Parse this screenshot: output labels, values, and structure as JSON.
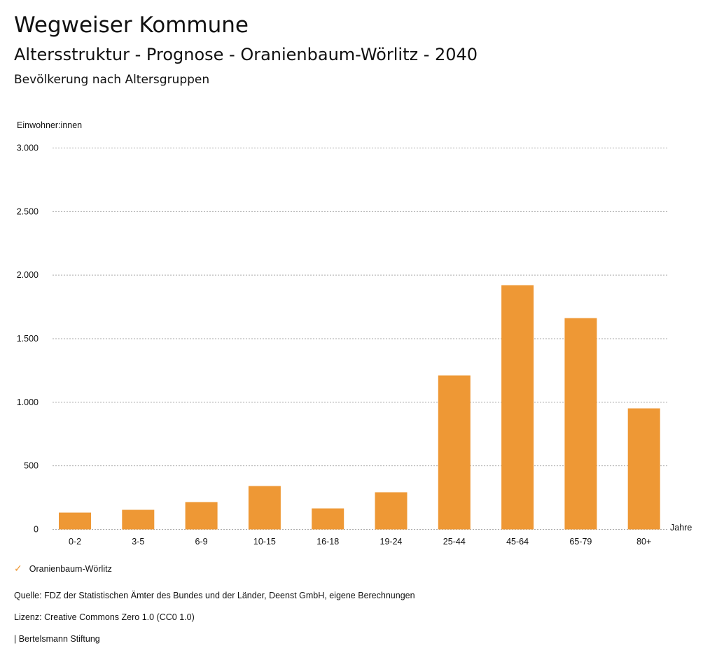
{
  "header": {
    "title": "Wegweiser Kommune",
    "subtitle": "Altersstruktur - Prognose - Oranienbaum-Wörlitz - 2040",
    "section": "Bevölkerung nach Altersgruppen"
  },
  "chart_data": {
    "type": "bar",
    "title": "Bevölkerung nach Altersgruppen",
    "ylabel": "Einwohner:innen",
    "xlabel": "Jahre",
    "categories": [
      "0-2",
      "3-5",
      "6-9",
      "10-15",
      "16-18",
      "19-24",
      "25-44",
      "45-64",
      "65-79",
      "80+"
    ],
    "series": [
      {
        "name": "Oranienbaum-Wörlitz",
        "color": "#ee9835",
        "values": [
          132,
          154,
          215,
          341,
          165,
          292,
          1211,
          1921,
          1662,
          952
        ]
      }
    ],
    "ylim": [
      0,
      3000
    ],
    "yticks": [
      0,
      500,
      1000,
      1500,
      2000,
      2500,
      3000
    ],
    "ytick_labels": [
      "0",
      "500",
      "1.000",
      "1.500",
      "2.000",
      "2.500",
      "3.000"
    ],
    "grid": true,
    "legend": "bottom-left"
  },
  "footer": {
    "source": "Quelle: FDZ der Statistischen Ämter des Bundes und der Länder, Deenst GmbH, eigene Berechnungen",
    "license": "Lizenz: Creative Commons Zero 1.0 (CC0 1.0)",
    "brand": "| Bertelsmann Stiftung"
  }
}
